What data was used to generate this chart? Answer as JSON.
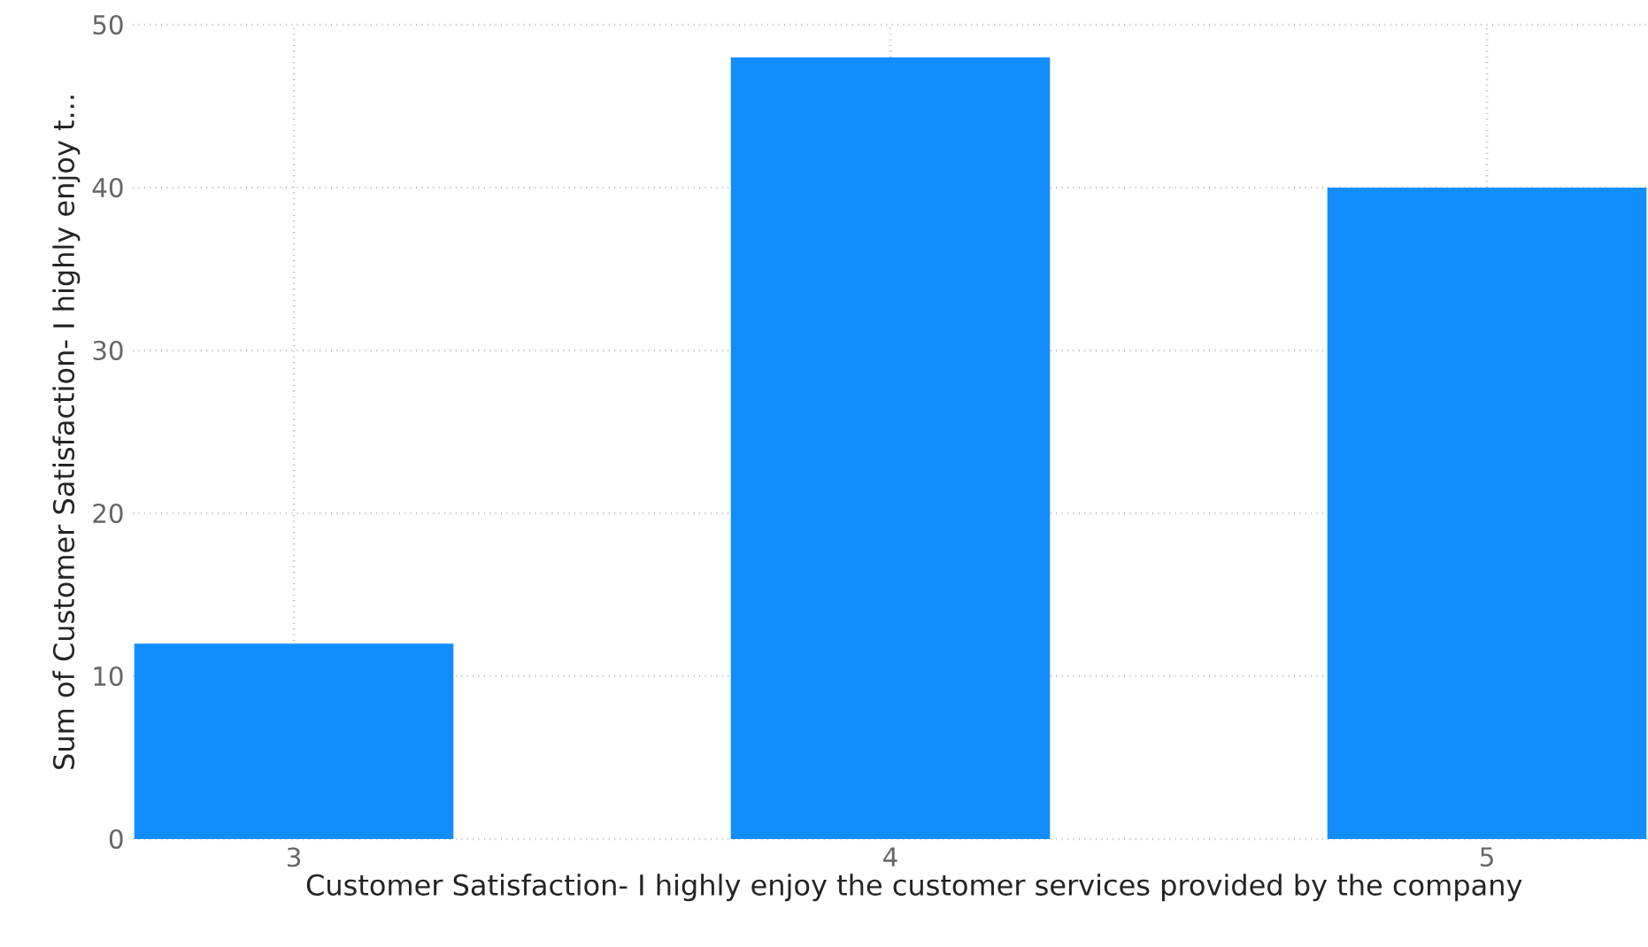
{
  "chart_data": {
    "type": "bar",
    "xlabel": "Customer Satisfaction- I highly enjoy the customer services provided by the company",
    "ylabel": "Sum of Customer Satisfaction- I highly enjoy t...",
    "categories": [
      "3",
      "4",
      "5"
    ],
    "values": [
      12,
      48,
      40
    ],
    "color": "#118dff",
    "ylim": [
      0,
      50
    ],
    "yticks": [
      0,
      10,
      20,
      30,
      40,
      50
    ],
    "grid": true
  }
}
